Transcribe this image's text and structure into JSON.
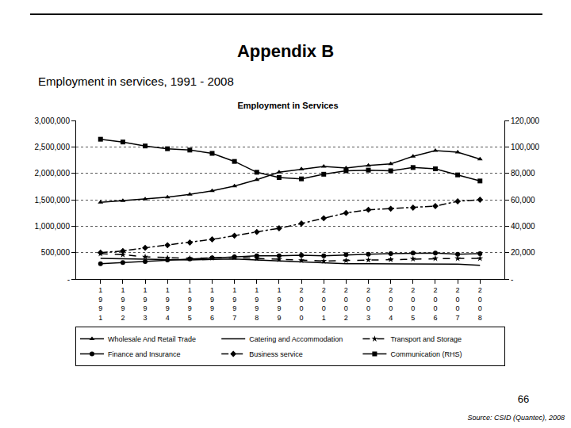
{
  "page": {
    "heading": "Appendix B",
    "caption": "Employment in services, 1991 - 2008",
    "page_number": "66",
    "source": "Source: CSID (Quantec), 2008"
  },
  "chart_data": {
    "type": "line",
    "title": "Employment in Services",
    "categories": [
      "1991",
      "1992",
      "1993",
      "1994",
      "1995",
      "1996",
      "1997",
      "1998",
      "1999",
      "2000",
      "2001",
      "2002",
      "2003",
      "2004",
      "2005",
      "2006",
      "2007",
      "2008"
    ],
    "series": [
      {
        "name": "Wholesale And Retail Trade",
        "color": "#000000",
        "marker": "triangle",
        "line_style": "solid",
        "values": [
          1450000,
          1480000,
          1510000,
          1550000,
          1600000,
          1670000,
          1760000,
          1880000,
          2020000,
          2080000,
          2130000,
          2100000,
          2150000,
          2180000,
          2320000,
          2430000,
          2400000,
          2270000
        ]
      },
      {
        "name": "Catering and Accommodation",
        "color": "#000000",
        "marker": "none",
        "line_style": "solid",
        "values": [
          390000,
          380000,
          370000,
          360000,
          360000,
          370000,
          380000,
          360000,
          340000,
          320000,
          300000,
          290000,
          290000,
          290000,
          290000,
          290000,
          280000,
          260000
        ]
      },
      {
        "name": "Transport and Storage",
        "color": "#000000",
        "marker": "star",
        "line_style": "dash",
        "values": [
          480000,
          460000,
          420000,
          400000,
          390000,
          400000,
          410000,
          390000,
          370000,
          350000,
          340000,
          350000,
          360000,
          370000,
          380000,
          390000,
          390000,
          390000
        ]
      },
      {
        "name": "Finance and Insurance",
        "color": "#000000",
        "marker": "circle",
        "line_style": "solid",
        "values": [
          290000,
          310000,
          330000,
          360000,
          380000,
          400000,
          420000,
          440000,
          440000,
          450000,
          440000,
          460000,
          470000,
          480000,
          490000,
          490000,
          470000,
          480000
        ]
      },
      {
        "name": "Business service",
        "color": "#000000",
        "marker": "diamond",
        "line_style": "dashdot",
        "values": [
          500000,
          530000,
          590000,
          640000,
          690000,
          750000,
          820000,
          890000,
          960000,
          1050000,
          1150000,
          1250000,
          1310000,
          1330000,
          1350000,
          1380000,
          1470000,
          1500000
        ]
      },
      {
        "name": "Communication (RHS)",
        "color": "#000000",
        "marker": "square",
        "line_style": "solid",
        "axis": "y2",
        "values": [
          105800,
          103700,
          100700,
          98600,
          97600,
          95100,
          89000,
          80800,
          76800,
          75800,
          79300,
          81900,
          82400,
          81900,
          84400,
          83400,
          78800,
          74200
        ]
      }
    ],
    "ylim": [
      0,
      3000000
    ],
    "yticks": [
      {
        "value": 0,
        "label": "-"
      },
      {
        "value": 500000,
        "label": "500,000"
      },
      {
        "value": 1000000,
        "label": "1,000,000"
      },
      {
        "value": 1500000,
        "label": "1,500,000"
      },
      {
        "value": 2000000,
        "label": "2,000,000"
      },
      {
        "value": 2500000,
        "label": "2,500,000"
      },
      {
        "value": 3000000,
        "label": "3,000,000"
      }
    ],
    "y2lim": [
      0,
      120000
    ],
    "y2ticks": [
      {
        "value": 0,
        "label": "-"
      },
      {
        "value": 20000,
        "label": "20,000"
      },
      {
        "value": 40000,
        "label": "40,000"
      },
      {
        "value": 60000,
        "label": "60,000"
      },
      {
        "value": 80000,
        "label": "80,000"
      },
      {
        "value": 100000,
        "label": "100,000"
      },
      {
        "value": 120000,
        "label": "120,000"
      }
    ],
    "grid": true,
    "legend": "bottom"
  }
}
